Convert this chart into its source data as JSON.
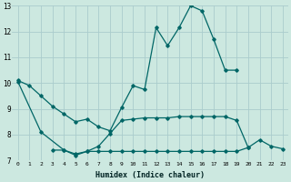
{
  "xlabel": "Humidex (Indice chaleur)",
  "bg_color": "#cce8e0",
  "grid_color": "#aacccc",
  "line_color": "#006666",
  "ylim": [
    7,
    13
  ],
  "xlim": [
    -0.5,
    23.5
  ],
  "curve1_x": [
    0,
    1,
    2,
    3,
    4,
    5,
    6,
    7,
    8,
    9,
    10,
    11,
    12,
    13,
    14,
    15,
    16,
    17,
    18,
    19
  ],
  "curve1_y": [
    10.1,
    9.9,
    9.5,
    9.1,
    8.8,
    8.5,
    8.6,
    8.3,
    8.15,
    9.05,
    9.9,
    9.75,
    12.15,
    11.45,
    12.15,
    13.0,
    12.8,
    11.7,
    10.5,
    10.5
  ],
  "curve2_x": [
    0,
    2,
    4,
    5,
    6,
    7,
    8,
    9,
    10,
    11,
    12,
    13,
    14,
    15,
    16,
    17,
    18,
    19,
    20
  ],
  "curve2_y": [
    10.05,
    8.1,
    7.4,
    7.2,
    7.35,
    7.55,
    8.05,
    8.55,
    8.6,
    8.65,
    8.65,
    8.65,
    8.7,
    8.7,
    8.7,
    8.7,
    8.7,
    8.55,
    7.5
  ],
  "curve3_x": [
    3,
    4,
    5,
    6,
    7,
    8,
    9,
    10,
    11,
    12,
    13,
    14,
    15,
    16,
    17,
    18,
    19,
    20,
    21,
    22,
    23
  ],
  "curve3_y": [
    7.4,
    7.4,
    7.25,
    7.35,
    7.35,
    7.35,
    7.35,
    7.35,
    7.35,
    7.35,
    7.35,
    7.35,
    7.35,
    7.35,
    7.35,
    7.35,
    7.35,
    7.5,
    7.8,
    7.55,
    7.45
  ]
}
